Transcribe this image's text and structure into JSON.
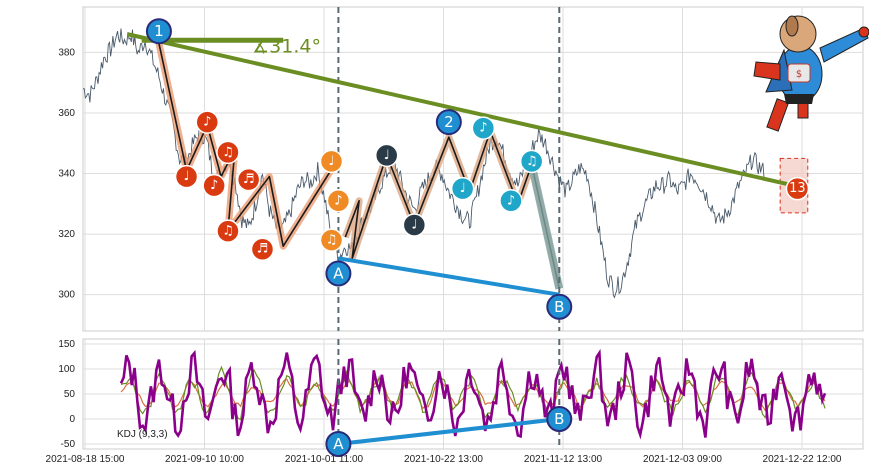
{
  "chart_data": [
    {
      "type": "line",
      "panel": "price",
      "ylim": [
        288,
        395
      ],
      "yticks": [
        300,
        320,
        340,
        360,
        380
      ],
      "grid": true,
      "price_path": [
        [
          0.0,
          368
        ],
        [
          0.02,
          366
        ],
        [
          0.04,
          371
        ],
        [
          0.06,
          378
        ],
        [
          0.08,
          381
        ],
        [
          0.1,
          386
        ],
        [
          0.12,
          384
        ],
        [
          0.14,
          386
        ],
        [
          0.16,
          380
        ],
        [
          0.18,
          384
        ],
        [
          0.2,
          378
        ],
        [
          0.22,
          372
        ],
        [
          0.24,
          364
        ],
        [
          0.26,
          356
        ],
        [
          0.28,
          345
        ],
        [
          0.3,
          344
        ],
        [
          0.32,
          350
        ],
        [
          0.34,
          354
        ],
        [
          0.36,
          350
        ],
        [
          0.38,
          338
        ],
        [
          0.4,
          340
        ],
        [
          0.42,
          345
        ],
        [
          0.44,
          338
        ],
        [
          0.46,
          325
        ],
        [
          0.48,
          322
        ],
        [
          0.5,
          330
        ],
        [
          0.52,
          340
        ],
        [
          0.54,
          328
        ],
        [
          0.56,
          322
        ],
        [
          0.58,
          322
        ],
        [
          0.6,
          327
        ],
        [
          0.62,
          334
        ],
        [
          0.64,
          338
        ],
        [
          0.66,
          337
        ],
        [
          0.68,
          341
        ],
        [
          0.7,
          332
        ],
        [
          0.72,
          319
        ],
        [
          0.74,
          312
        ],
        [
          0.76,
          316
        ],
        [
          0.78,
          315
        ],
        [
          0.8,
          322
        ],
        [
          0.82,
          326
        ],
        [
          0.84,
          330
        ],
        [
          0.86,
          336
        ],
        [
          0.88,
          340
        ],
        [
          0.9,
          344
        ],
        [
          0.92,
          338
        ],
        [
          0.94,
          332
        ],
        [
          0.96,
          328
        ],
        [
          0.98,
          334
        ],
        [
          1.0,
          338
        ],
        [
          1.02,
          342
        ],
        [
          1.04,
          340
        ],
        [
          1.06,
          334
        ],
        [
          1.08,
          330
        ],
        [
          1.1,
          326
        ],
        [
          1.12,
          324
        ],
        [
          1.14,
          332
        ],
        [
          1.16,
          342
        ],
        [
          1.18,
          350
        ],
        [
          1.2,
          352
        ],
        [
          1.22,
          346
        ],
        [
          1.24,
          340
        ],
        [
          1.26,
          336
        ],
        [
          1.28,
          342
        ],
        [
          1.3,
          348
        ],
        [
          1.32,
          353
        ],
        [
          1.34,
          350
        ],
        [
          1.36,
          344
        ],
        [
          1.38,
          338
        ],
        [
          1.4,
          334
        ],
        [
          1.42,
          338
        ],
        [
          1.44,
          342
        ],
        [
          1.46,
          340
        ],
        [
          1.48,
          330
        ],
        [
          1.5,
          318
        ],
        [
          1.52,
          306
        ],
        [
          1.54,
          302
        ],
        [
          1.56,
          304
        ],
        [
          1.58,
          312
        ],
        [
          1.6,
          322
        ],
        [
          1.62,
          328
        ],
        [
          1.64,
          332
        ],
        [
          1.66,
          336
        ],
        [
          1.68,
          336
        ],
        [
          1.7,
          338
        ],
        [
          1.72,
          334
        ],
        [
          1.74,
          336
        ],
        [
          1.76,
          340
        ],
        [
          1.78,
          338
        ],
        [
          1.8,
          334
        ],
        [
          1.82,
          330
        ],
        [
          1.84,
          324
        ],
        [
          1.86,
          326
        ],
        [
          1.88,
          330
        ],
        [
          1.9,
          336
        ],
        [
          1.92,
          340
        ],
        [
          1.94,
          345
        ],
        [
          1.96,
          342
        ],
        [
          1.98,
          340
        ]
      ],
      "wave_segments_orange": [
        [
          [
            0.22,
            383
          ],
          [
            0.3,
            341
          ],
          [
            0.36,
            356
          ],
          [
            0.4,
            339
          ],
          [
            0.44,
            348
          ],
          [
            0.42,
            321
          ],
          [
            0.54,
            339
          ],
          [
            0.58,
            316
          ],
          [
            0.74,
            345
          ]
        ],
        [
          [
            0.76,
            319
          ],
          [
            0.8,
            331
          ],
          [
            0.78,
            312
          ],
          [
            0.88,
            346
          ],
          [
            0.96,
            323
          ],
          [
            1.06,
            352
          ],
          [
            1.12,
            334
          ],
          [
            1.18,
            354
          ],
          [
            1.26,
            330
          ],
          [
            1.3,
            343
          ],
          [
            1.38,
            302
          ]
        ]
      ],
      "markers": [
        {
          "label": "1",
          "x": 0.22,
          "y": 387,
          "fill": "#1f8fd1",
          "ring": "#2a2a7a",
          "big": true
        },
        {
          "label": "♩",
          "x": 0.3,
          "y": 339,
          "fill": "#d93a10",
          "ring": "#ffffff"
        },
        {
          "label": "♪",
          "x": 0.36,
          "y": 357,
          "fill": "#d93a10",
          "ring": "#ffffff"
        },
        {
          "label": "♪",
          "x": 0.38,
          "y": 336,
          "fill": "#d93a10",
          "ring": "#ffffff"
        },
        {
          "label": "♫",
          "x": 0.42,
          "y": 347,
          "fill": "#d93a10",
          "ring": "#ffffff"
        },
        {
          "label": "♫",
          "x": 0.42,
          "y": 321,
          "fill": "#d93a10",
          "ring": "#ffffff"
        },
        {
          "label": "♬",
          "x": 0.48,
          "y": 338,
          "fill": "#d93a10",
          "ring": "#ffffff"
        },
        {
          "label": "♬",
          "x": 0.52,
          "y": 315,
          "fill": "#d93a10",
          "ring": "#ffffff"
        },
        {
          "label": "♩",
          "x": 0.72,
          "y": 344,
          "fill": "#f08a24",
          "ring": "#ffffff"
        },
        {
          "label": "♪",
          "x": 0.74,
          "y": 331,
          "fill": "#f08a24",
          "ring": "#ffffff"
        },
        {
          "label": "♫",
          "x": 0.72,
          "y": 318,
          "fill": "#f08a24",
          "ring": "#ffffff"
        },
        {
          "label": "A",
          "x": 0.74,
          "y": 307,
          "fill": "#1f8fd1",
          "ring": "#2a2a7a",
          "big": true
        },
        {
          "label": "♩",
          "x": 0.88,
          "y": 346,
          "fill": "#2a3b47",
          "ring": "#ffffff"
        },
        {
          "label": "♩",
          "x": 0.96,
          "y": 323,
          "fill": "#2a3b47",
          "ring": "#ffffff"
        },
        {
          "label": "2",
          "x": 1.06,
          "y": 357,
          "fill": "#1f8fd1",
          "ring": "#2a2a7a",
          "big": true
        },
        {
          "label": "♩",
          "x": 1.1,
          "y": 335,
          "fill": "#1fa6c9",
          "ring": "#ffffff"
        },
        {
          "label": "♪",
          "x": 1.16,
          "y": 355,
          "fill": "#1fa6c9",
          "ring": "#ffffff"
        },
        {
          "label": "♪",
          "x": 1.24,
          "y": 331,
          "fill": "#1fa6c9",
          "ring": "#ffffff"
        },
        {
          "label": "♫",
          "x": 1.3,
          "y": 344,
          "fill": "#1fa6c9",
          "ring": "#ffffff"
        },
        {
          "label": "B",
          "x": 1.38,
          "y": 296,
          "fill": "#1f8fd1",
          "ring": "#2a2a7a",
          "big": true
        },
        {
          "label": "13",
          "x": 2.07,
          "y": 335,
          "fill": "#d93a10",
          "ring": "#ffffff"
        }
      ],
      "trendline_green": [
        [
          0.13,
          386
        ],
        [
          2.1,
          335
        ]
      ],
      "trendline_flat_green": [
        [
          0.17,
          384
        ],
        [
          0.58,
          384
        ]
      ],
      "angle_label": "∡31.4°",
      "trendline_blue": [
        [
          0.74,
          312
        ],
        [
          1.38,
          300
        ]
      ],
      "dashed_verticals": [
        0.74,
        1.38
      ],
      "shaded_box": {
        "x0": 2.02,
        "x1": 2.1,
        "y0": 327,
        "y1": 345
      }
    },
    {
      "type": "line",
      "panel": "indicator",
      "title": "KDJ (9,3,3)",
      "ylim": [
        -60,
        160
      ],
      "yticks": [
        -50,
        0,
        50,
        100,
        150
      ],
      "xticks": [
        "2021-08-18 15:00",
        "2021-09-10 10:00",
        "2021-10-01 11:00",
        "2021-10-22 13:00",
        "2021-11-12 13:00",
        "2021-12-03 09:00",
        "2021-12-22 12:00"
      ],
      "grid": true,
      "series": [
        {
          "name": "K",
          "color": "#6b8e23"
        },
        {
          "name": "D",
          "color": "#d9703f"
        },
        {
          "name": "J",
          "color": "#8b008b"
        }
      ],
      "trendline_blue": [
        [
          0.74,
          -50
        ],
        [
          1.38,
          0
        ]
      ],
      "markers": [
        {
          "label": "A",
          "x": 0.74,
          "y": -50,
          "fill": "#1f8fd1",
          "ring": "#2a2a7a",
          "big": true
        },
        {
          "label": "B",
          "x": 1.38,
          "y": 0,
          "fill": "#1f8fd1",
          "ring": "#2a2a7a",
          "big": true
        }
      ]
    }
  ],
  "logo": {
    "name": "superhero-dog-mascot"
  }
}
